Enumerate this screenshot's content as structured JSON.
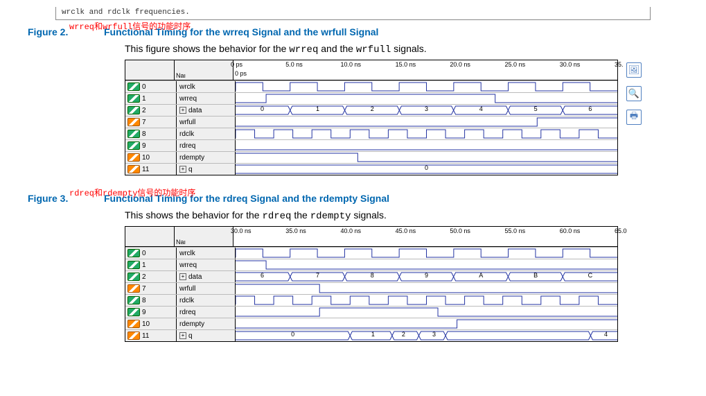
{
  "top_fragment": "wrclk and rdclk frequencies.",
  "fig2": {
    "annotation": "wrreq和wrfull信号的功能时序",
    "label": "Figure 2.",
    "title": "Functional Timing for the wrreq Signal and the wrfull Signal",
    "caption_pre": "This figure shows the behavior for the ",
    "caption_m1": "wrreq",
    "caption_mid": " and the ",
    "caption_m2": "wrfull",
    "caption_post": " signals.",
    "name_col": "Naı",
    "ruler_sub": "0 ps",
    "ticks": [
      "0 ps",
      "5.0 ns",
      "10.0 ns",
      "15.0 ns",
      "20.0 ns",
      "25.0 ns",
      "30.0 ns",
      "35."
    ],
    "tick_pos": [
      0,
      14.3,
      28.6,
      42.9,
      57.1,
      71.4,
      85.7,
      100
    ],
    "signals": [
      {
        "idx": "0",
        "name": "wrclk",
        "pin": "in"
      },
      {
        "idx": "1",
        "name": "wrreq",
        "pin": "in"
      },
      {
        "idx": "2",
        "name": "data",
        "pin": "in",
        "expand": true,
        "bus": true,
        "values": [
          "0",
          "1",
          "2",
          "3",
          "4",
          "5",
          "6"
        ],
        "vpos": [
          7,
          21.5,
          35.8,
          50,
          64.3,
          78.6,
          92.9
        ]
      },
      {
        "idx": "7",
        "name": "wrfull",
        "pin": "out"
      },
      {
        "idx": "8",
        "name": "rdclk",
        "pin": "in"
      },
      {
        "idx": "9",
        "name": "rdreq",
        "pin": "in"
      },
      {
        "idx": "10",
        "name": "rdempty",
        "pin": "out"
      },
      {
        "idx": "11",
        "name": "q",
        "pin": "out",
        "expand": true,
        "bus": true,
        "values": [
          "0"
        ],
        "vpos": [
          50
        ]
      }
    ],
    "wave_color": "#2030a0",
    "wrreq_high_start": 8,
    "wrreq_high_end": 68,
    "rdempty_drop": 32,
    "wrfull_high_start": 79
  },
  "fig3": {
    "annotation": "rdreq和rdempty信号的功能时序",
    "label": "Figure 3.",
    "title": "Functional Timing for the rdreq Signal and the rdempty Signal",
    "caption_pre": "This shows the behavior for the ",
    "caption_m1": "rdreq",
    "caption_mid": " the ",
    "caption_m2": "rdempty",
    "caption_post": " signals.",
    "name_col": "Naı",
    "ticks": [
      "30.0 ns",
      "35.0 ns",
      "40.0 ns",
      "45.0 ns",
      "50.0 ns",
      "55.0 ns",
      "60.0 ns",
      "65.0"
    ],
    "tick_pos": [
      0,
      14.3,
      28.6,
      42.9,
      57.1,
      71.4,
      85.7,
      100
    ],
    "signals": [
      {
        "idx": "0",
        "name": "wrclk",
        "pin": "in"
      },
      {
        "idx": "1",
        "name": "wrreq",
        "pin": "in"
      },
      {
        "idx": "2",
        "name": "data",
        "pin": "in",
        "expand": true,
        "bus": true,
        "values": [
          "6",
          "7",
          "8",
          "9",
          "A",
          "B",
          "C"
        ],
        "vpos": [
          7,
          21.5,
          35.8,
          50,
          64.3,
          78.6,
          92.9
        ]
      },
      {
        "idx": "7",
        "name": "wrfull",
        "pin": "out"
      },
      {
        "idx": "8",
        "name": "rdclk",
        "pin": "in"
      },
      {
        "idx": "9",
        "name": "rdreq",
        "pin": "in"
      },
      {
        "idx": "10",
        "name": "rdempty",
        "pin": "out"
      },
      {
        "idx": "11",
        "name": "q",
        "pin": "out",
        "expand": true,
        "bus": true,
        "values": [
          "0",
          "1",
          "2",
          "3",
          "4"
        ],
        "vpos": [
          15,
          36,
          44,
          52,
          97
        ],
        "q_trans": [
          30,
          41,
          48,
          55,
          93
        ]
      }
    ],
    "wave_color": "#2030a0",
    "wrreq_high_end": 8,
    "rdreq_high_start": 22,
    "rdreq_high_end": 53,
    "wrfull_drop": 22,
    "rdempty_rise": 58
  },
  "icons": {
    "image": "🖼",
    "zoom": "🔍",
    "print": "🖶"
  },
  "colors": {
    "heading": "#0067b0",
    "annotation": "#ff0000",
    "wave": "#2030a0",
    "bg": "#ffffff",
    "panel": "#efefef"
  }
}
